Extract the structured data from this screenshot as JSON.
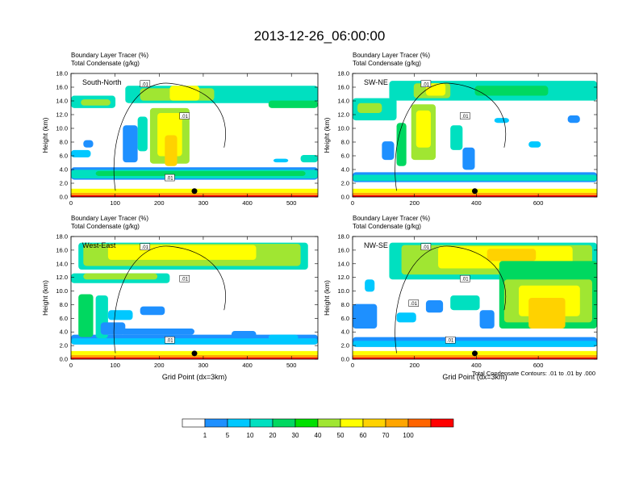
{
  "figure": {
    "title": "2013-12-26_06:00:00",
    "footnote": "Total Condensate Contours: .01 to .01 by .000"
  },
  "chart_data": [
    {
      "type": "heatmap",
      "panel_label": "South-North",
      "header_lines": [
        "Boundary Layer Tracer    (%)",
        "Total Condensate    (g/kg)"
      ],
      "xlabel": "",
      "ylabel": "Height (km)",
      "xlim": [
        0,
        560
      ],
      "ylim": [
        0,
        18
      ],
      "x_ticks": [
        0,
        100,
        200,
        300,
        400,
        500
      ],
      "y_ticks": [
        "0.0",
        "2.0",
        "4.0",
        "6.0",
        "8.0",
        "10.0",
        "12.0",
        "14.0",
        "16.0",
        "18.0"
      ],
      "contour_labels": [
        ".01",
        ".01",
        ".01"
      ],
      "marker_x": 280
    },
    {
      "type": "heatmap",
      "panel_label": "SW-NE",
      "header_lines": [
        "Boundary Layer Tracer    (%)",
        "Total Condensate    (g/kg)"
      ],
      "xlabel": "",
      "ylabel": "Height (km)",
      "xlim": [
        0,
        790
      ],
      "ylim": [
        0,
        18
      ],
      "x_ticks": [
        0,
        200,
        400,
        600
      ],
      "y_ticks": [
        "0.0",
        "2.0",
        "4.0",
        "6.0",
        "8.0",
        "10.0",
        "12.0",
        "14.0",
        "16.0",
        "18.0"
      ],
      "contour_labels": [
        ".01",
        ".01"
      ],
      "marker_x": 395
    },
    {
      "type": "heatmap",
      "panel_label": "West-East",
      "header_lines": [
        "Boundary Layer Tracer    (%)",
        "Total Condensate    (g/kg)"
      ],
      "xlabel": "Grid Point (dx=3km)",
      "ylabel": "Height (km)",
      "xlim": [
        0,
        560
      ],
      "ylim": [
        0,
        18
      ],
      "x_ticks": [
        0,
        100,
        200,
        300,
        400,
        500
      ],
      "y_ticks": [
        "0.0",
        "2.0",
        "4.0",
        "6.0",
        "8.0",
        "10.0",
        "12.0",
        "14.0",
        "16.0",
        "18.0"
      ],
      "contour_labels": [
        ".01",
        ".01",
        ".01"
      ],
      "marker_x": 280
    },
    {
      "type": "heatmap",
      "panel_label": "NW-SE",
      "header_lines": [
        "Boundary Layer Tracer    (%)",
        "Total Condensate    (g/kg)"
      ],
      "xlabel": "Grid Point (dx=3km)",
      "ylabel": "Height (km)",
      "xlim": [
        0,
        790
      ],
      "ylim": [
        0,
        18
      ],
      "x_ticks": [
        0,
        200,
        400,
        600
      ],
      "y_ticks": [
        "0.0",
        "2.0",
        "4.0",
        "6.0",
        "8.0",
        "10.0",
        "12.0",
        "14.0",
        "16.0",
        "18.0"
      ],
      "contour_labels": [
        ".01",
        ".01",
        ".01",
        ".01"
      ],
      "marker_x": 395
    }
  ],
  "colorbar": {
    "labels": [
      "1",
      "5",
      "10",
      "20",
      "30",
      "40",
      "50",
      "60",
      "70",
      "100"
    ],
    "colors": [
      "#ffffff",
      "#1e90ff",
      "#00c8ff",
      "#00e0c0",
      "#00d860",
      "#00e000",
      "#a0e632",
      "#ffff00",
      "#ffd200",
      "#ffa500",
      "#ff6400",
      "#ff0000"
    ]
  }
}
